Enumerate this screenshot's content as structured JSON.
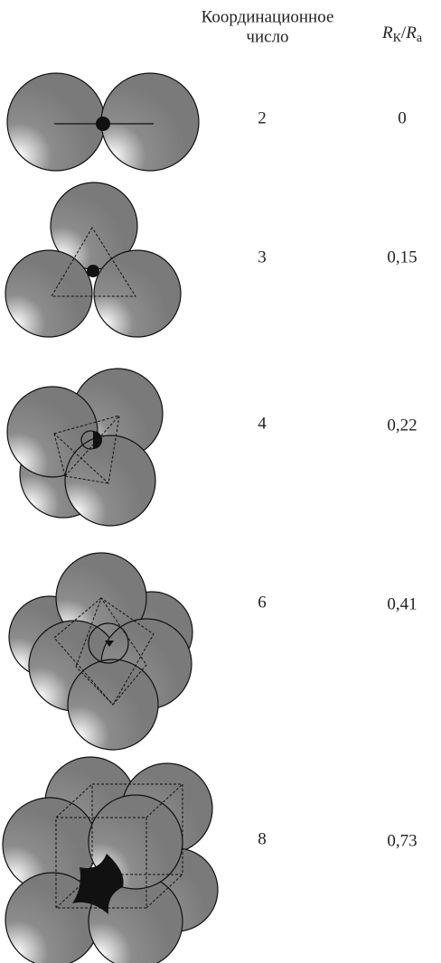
{
  "header": {
    "coordination": [
      "Координационное",
      "число"
    ],
    "ratio": [
      "R",
      "К",
      "/",
      "R",
      "а"
    ]
  },
  "rows": [
    {
      "number": "2",
      "ratio": "0"
    },
    {
      "number": "3",
      "ratio": "0,15"
    },
    {
      "number": "4",
      "ratio": "0,22"
    },
    {
      "number": "6",
      "ratio": "0,41"
    },
    {
      "number": "8",
      "ratio": "0,73"
    }
  ]
}
